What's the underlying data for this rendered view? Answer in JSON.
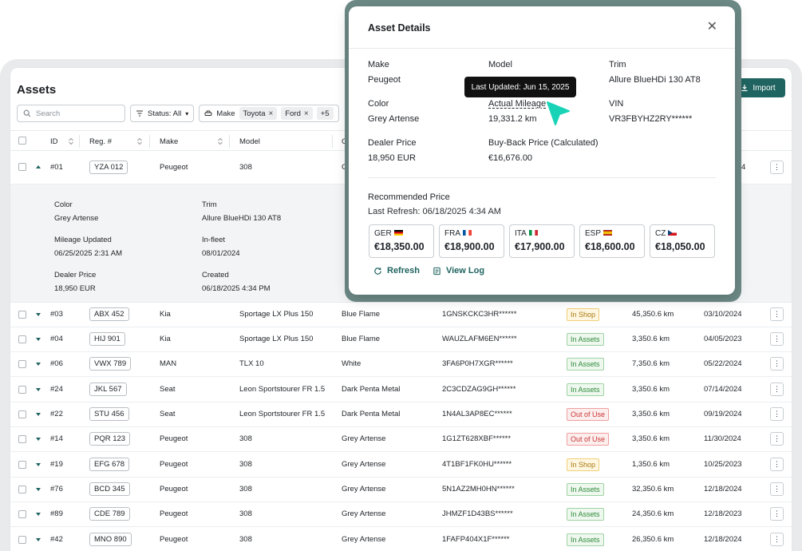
{
  "page": {
    "title": "Assets",
    "import_label": "Import",
    "search_placeholder": "Search",
    "status_filter": "Status: All",
    "make_filter_label": "Make",
    "make_chips": [
      "Toyota",
      "Ford"
    ],
    "more_count": "+5"
  },
  "table": {
    "columns": [
      "ID",
      "Reg. #",
      "Make",
      "Model",
      "C"
    ],
    "first_row": {
      "id": "#01",
      "reg": "YZA 012",
      "make": "Peugeot",
      "model": "308",
      "color_short": "G",
      "date_short": "4"
    },
    "expanded": {
      "color_label": "Color",
      "color": "Grey Artense",
      "trim_label": "Trim",
      "trim": "Allure BlueHDi 130 AT8",
      "mileage_label": "Mileage Updated",
      "mileage_updated": "06/25/2025 2:31 AM",
      "infleet_label": "In-fleet",
      "infleet": "08/01/2024",
      "dealer_label": "Dealer Price",
      "dealer": "18,950 EUR",
      "created_label": "Created",
      "created": "06/18/2025 4:34 PM"
    },
    "rows": [
      {
        "id": "#03",
        "reg": "ABX 452",
        "make": "Kia",
        "model": "Sportage LX Plus 150",
        "color": "Blue Flame",
        "vin": "1GNSKCKC3HR******",
        "status": "In Shop",
        "status_class": "in-shop",
        "mileage": "45,350.6 km",
        "date": "03/10/2024"
      },
      {
        "id": "#04",
        "reg": "HIJ 901",
        "make": "Kia",
        "model": "Sportage LX Plus 150",
        "color": "Blue Flame",
        "vin": "WAUZLAFM6EN******",
        "status": "In Assets",
        "status_class": "in-assets",
        "mileage": "3,350.6 km",
        "date": "04/05/2023"
      },
      {
        "id": "#06",
        "reg": "VWX 789",
        "make": "MAN",
        "model": "TLX 10",
        "color": "White",
        "vin": "3FA6P0H7XGR******",
        "status": "In Assets",
        "status_class": "in-assets",
        "mileage": "7,350.6 km",
        "date": "05/22/2024"
      },
      {
        "id": "#24",
        "reg": "JKL 567",
        "make": "Seat",
        "model": "Leon Sportstourer FR 1.5",
        "color": "Dark Penta Metal",
        "vin": "2C3CDZAG9GH******",
        "status": "In Assets",
        "status_class": "in-assets",
        "mileage": "3,350.6 km",
        "date": "07/14/2024"
      },
      {
        "id": "#22",
        "reg": "STU 456",
        "make": "Seat",
        "model": "Leon Sportstourer FR 1.5",
        "color": "Dark Penta Metal",
        "vin": "1N4AL3AP8EC******",
        "status": "Out of Use",
        "status_class": "out-of-use",
        "mileage": "3,350.6 km",
        "date": "09/19/2024"
      },
      {
        "id": "#14",
        "reg": "PQR 123",
        "make": "Peugeot",
        "model": "308",
        "color": "Grey Artense",
        "vin": "1G1ZT628XBF******",
        "status": "Out of Use",
        "status_class": "out-of-use",
        "mileage": "3,350.6 km",
        "date": "11/30/2024"
      },
      {
        "id": "#19",
        "reg": "EFG 678",
        "make": "Peugeot",
        "model": "308",
        "color": "Grey Artense",
        "vin": "4T1BF1FK0HU******",
        "status": "In Shop",
        "status_class": "in-shop",
        "mileage": "1,350.6 km",
        "date": "10/25/2023"
      },
      {
        "id": "#76",
        "reg": "BCD 345",
        "make": "Peugeot",
        "model": "308",
        "color": "Grey Artense",
        "vin": "5N1AZ2MH0HN******",
        "status": "In Assets",
        "status_class": "in-assets",
        "mileage": "32,350.6 km",
        "date": "12/18/2024"
      },
      {
        "id": "#89",
        "reg": "CDE 789",
        "make": "Peugeot",
        "model": "308",
        "color": "Grey Artense",
        "vin": "JHMZF1D43BS******",
        "status": "In Assets",
        "status_class": "in-assets",
        "mileage": "24,350.6 km",
        "date": "12/18/2023"
      },
      {
        "id": "#42",
        "reg": "MNO 890",
        "make": "Peugeot",
        "model": "308",
        "color": "Grey Artense",
        "vin": "1FAFP404X1F******",
        "status": "In Assets",
        "status_class": "in-assets",
        "mileage": "26,350.6 km",
        "date": "12/18/2024"
      }
    ]
  },
  "modal": {
    "title": "Asset Details",
    "make_label": "Make",
    "make": "Peugeot",
    "model_label": "Model",
    "trim_label": "Trim",
    "trim": "Allure BlueHDi 130 AT8",
    "color_label": "Color",
    "color": "Grey Artense",
    "mileage_label": "Actual Mileage",
    "mileage": "19,331.2 km",
    "vin_label": "VIN",
    "vin": "VR3FBYHZ2RY******",
    "dealer_label": "Dealer Price",
    "dealer": "18,950 EUR",
    "buyback_label": "Buy-Back Price (Calculated)",
    "buyback": "€16,676.00",
    "rec_title": "Recommended Price",
    "rec_sub": "Last Refresh: 06/18/2025 4:34 AM",
    "prices": [
      {
        "country": "GER",
        "price": "€18,350.00",
        "flag": "de"
      },
      {
        "country": "FRA",
        "price": "€18,900.00",
        "flag": "fr"
      },
      {
        "country": "ITA",
        "price": "€17,900.00",
        "flag": "it"
      },
      {
        "country": "ESP",
        "price": "€18,600.00",
        "flag": "es"
      },
      {
        "country": "CZ",
        "price": "€18,050.00",
        "flag": "cz"
      }
    ],
    "refresh_label": "Refresh",
    "viewlog_label": "View Log",
    "tooltip": "Last Updated: Jun 15, 2025"
  },
  "colors": {
    "accent": "#1f6460",
    "cursor": "#19d3b7"
  }
}
